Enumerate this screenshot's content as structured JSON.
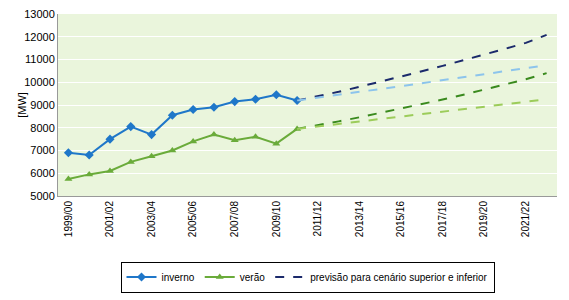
{
  "chart_data": {
    "type": "line",
    "y_label": "[MW]",
    "categories": [
      "1999/00",
      null,
      "2001/02",
      null,
      "2003/04",
      null,
      "2005/06",
      null,
      "2007/08",
      null,
      "2009/10",
      null,
      "2011/12",
      null,
      "2013/14",
      null,
      "2015/16",
      null,
      "2017/18",
      null,
      "2019/20",
      null,
      "2021/22",
      null
    ],
    "ylim": [
      5000,
      13000
    ],
    "yticks": [
      5000,
      6000,
      7000,
      8000,
      9000,
      10000,
      11000,
      12000,
      13000
    ],
    "grid": true,
    "legend": "bottom",
    "series": [
      {
        "name": "inverno",
        "color": "#1f77c9",
        "marker": "diamond",
        "line_style": "solid",
        "values": [
          6900,
          6800,
          7500,
          8050,
          7700,
          8550,
          8800,
          8900,
          9150,
          9250,
          9450,
          9200,
          null,
          null,
          null,
          null,
          null,
          null,
          null,
          null,
          null,
          null,
          null,
          null
        ]
      },
      {
        "name": "verão",
        "color": "#6aab3a",
        "marker": "triangle",
        "line_style": "solid",
        "values": [
          5750,
          5950,
          6100,
          6500,
          6750,
          7000,
          7400,
          7700,
          7450,
          7600,
          7300,
          7950,
          null,
          null,
          null,
          null,
          null,
          null,
          null,
          null,
          null,
          null,
          null,
          null
        ]
      },
      {
        "name": "previsão para cenário superior e inferior",
        "color": "#1b2a6b",
        "marker": "none",
        "line_style": "dash",
        "values": [
          null,
          null,
          null,
          null,
          null,
          null,
          null,
          null,
          null,
          null,
          null,
          9200,
          9380,
          9580,
          9800,
          10020,
          10250,
          10480,
          10720,
          10960,
          11210,
          11470,
          11730,
          12080
        ]
      },
      {
        "color": "#8cc4ec",
        "marker": "none",
        "line_style": "dash",
        "values": [
          null,
          null,
          null,
          null,
          null,
          null,
          null,
          null,
          null,
          null,
          null,
          9200,
          9320,
          9440,
          9570,
          9700,
          9830,
          9960,
          10090,
          10220,
          10350,
          10480,
          10610,
          10750
        ]
      },
      {
        "color": "#3a8a1e",
        "marker": "none",
        "line_style": "dash",
        "values": [
          null,
          null,
          null,
          null,
          null,
          null,
          null,
          null,
          null,
          null,
          null,
          7950,
          8100,
          8280,
          8460,
          8650,
          8840,
          9040,
          9240,
          9450,
          9670,
          9900,
          10130,
          10400
        ]
      },
      {
        "color": "#9ccc5a",
        "marker": "none",
        "line_style": "dash",
        "values": [
          null,
          null,
          null,
          null,
          null,
          null,
          null,
          null,
          null,
          null,
          null,
          7950,
          8060,
          8170,
          8280,
          8390,
          8500,
          8610,
          8720,
          8830,
          8940,
          9040,
          9150,
          9250
        ]
      }
    ]
  }
}
